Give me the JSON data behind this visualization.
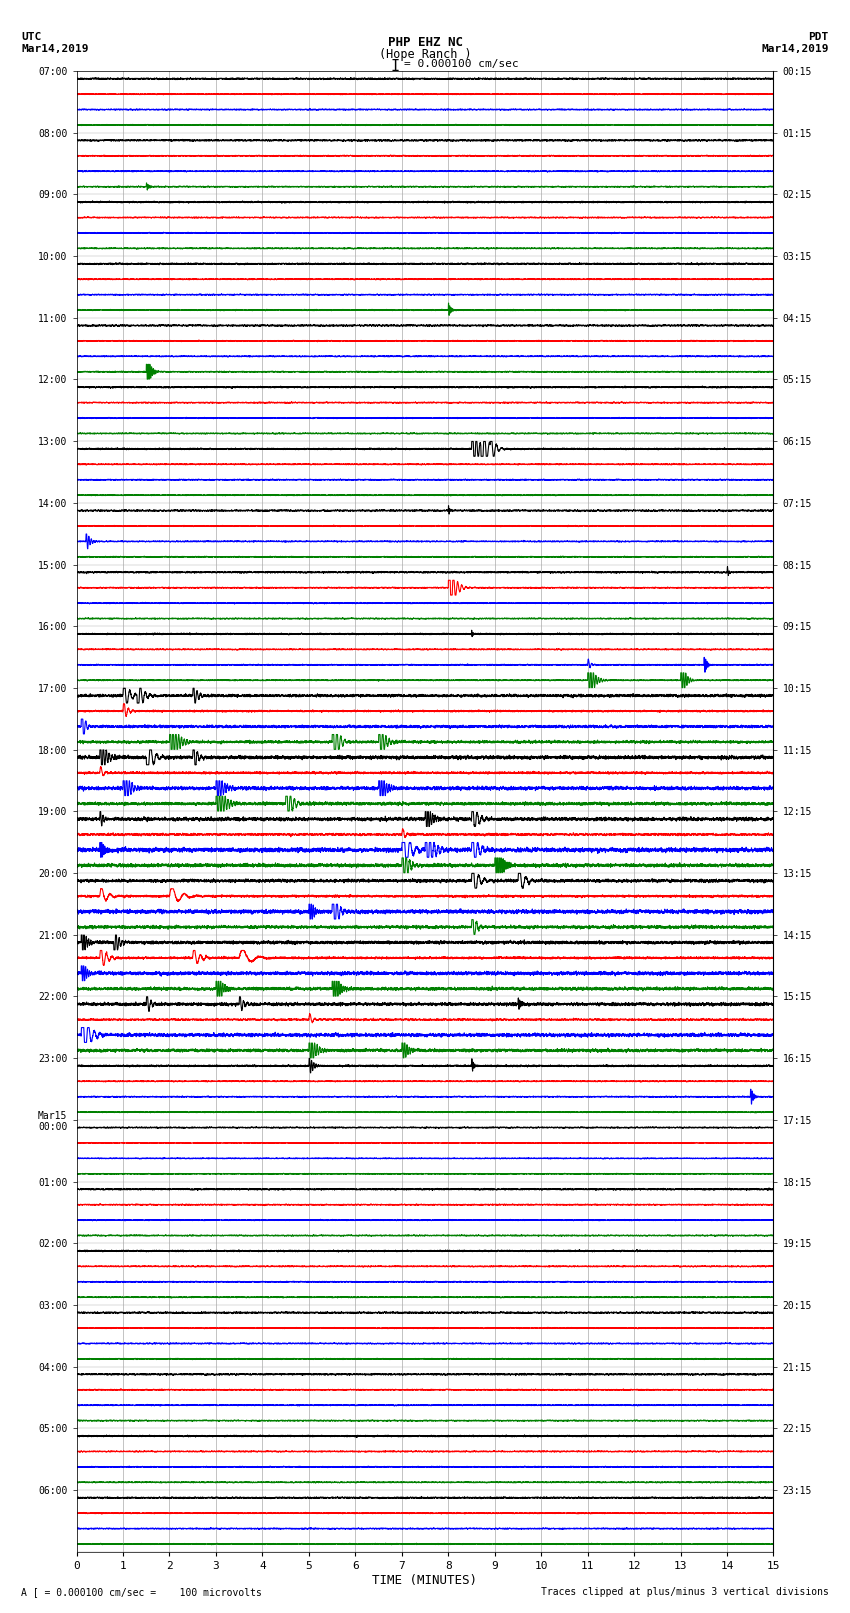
{
  "title_line1": "PHP EHZ NC",
  "title_line2": "(Hope Ranch )",
  "scale_label": "= 0.000100 cm/sec",
  "utc_label": "UTC",
  "utc_date": "Mar14,2019",
  "pdt_label": "PDT",
  "pdt_date": "Mar14,2019",
  "bottom_left": "A [ = 0.000100 cm/sec =    100 microvolts",
  "bottom_right": "Traces clipped at plus/minus 3 vertical divisions",
  "xlabel": "TIME (MINUTES)",
  "left_times": [
    "07:00",
    "08:00",
    "09:00",
    "10:00",
    "11:00",
    "12:00",
    "13:00",
    "14:00",
    "15:00",
    "16:00",
    "17:00",
    "18:00",
    "19:00",
    "20:00",
    "21:00",
    "22:00",
    "23:00",
    "Mar15\n00:00",
    "01:00",
    "02:00",
    "03:00",
    "04:00",
    "05:00",
    "06:00"
  ],
  "right_times": [
    "00:15",
    "01:15",
    "02:15",
    "03:15",
    "04:15",
    "05:15",
    "06:15",
    "07:15",
    "08:15",
    "09:15",
    "10:15",
    "11:15",
    "12:15",
    "13:15",
    "14:15",
    "15:15",
    "16:15",
    "17:15",
    "18:15",
    "19:15",
    "20:15",
    "21:15",
    "22:15",
    "23:15"
  ],
  "n_rows": 24,
  "trace_colors": [
    "black",
    "red",
    "blue",
    "green"
  ],
  "bg_color": "white",
  "xmin": 0,
  "xmax": 15,
  "xticks": [
    0,
    1,
    2,
    3,
    4,
    5,
    6,
    7,
    8,
    9,
    10,
    11,
    12,
    13,
    14,
    15
  ]
}
